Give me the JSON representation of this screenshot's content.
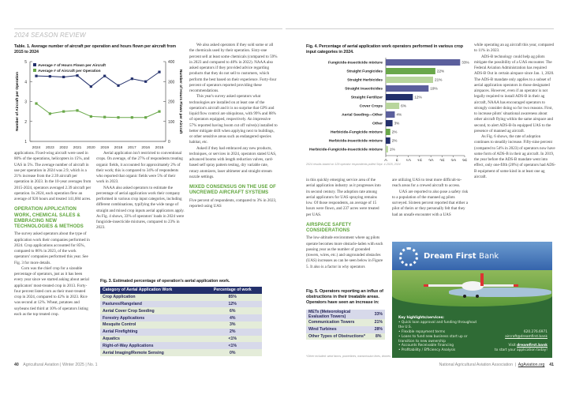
{
  "left_page": {
    "kicker": "2024 SEASON REVIEW",
    "fig1_title": "Table. 1. Average number of aircraft per operation and hours flown per aircraft from 2015 to 2024",
    "col1": [
      "applications. Fixed-wing aircraft were used in 80% of the operations, helicopters in 15%, and UAS in 5%. The average number of aircraft in use per operation in 2024 was 2.9, which is a 21% increase from the 2.39 aircraft per operation in 2023. In the 10-year averages from 2015-2024, operators averaged 2.39 aircraft per operation. In 2024, each operation flew an average of 920 hours and treated 141,084 acres."
    ],
    "heading1": "OPERATION APPLICATION WORK, CHEMICAL SALES & EMBRACING NEW TECHNOLOGIES & METHODS",
    "col1b": [
      "The survey asked operators about the type of application work their companies performed in 2024. Crop applications accounted for 85%, compared to 86% in 2023, of the work operators' companies performed this year. See Fig. 3 for more details.",
      "Corn was the chief crop for a sizeable percentage of operators, just as it has been every year since we started asking about aerial applicators' most-treated crop in 2013. Forty-four percent listed corn as their most-treated crop in 2024, compared to 42% in 2023. Rice was second at 12%. Wheat, potatoes and soybeans tied third at 10% of operators listing each as the top treated crop."
    ],
    "col2": [
      "Aerial application isn't restricted to conventional crops. On average, of the 27% of respondents treating organic fields, it accounted for approximately 2% of their work; this is compared to 34% of respondents who reported that organic fields were 5% of their work in 2023.",
      "NAAA also asked operators to estimate the percentage of aerial application work their company performed in various crop input categories, including different combinations, typifying the wide range of straight and mixed crop inputs aerial applicators apply. As Fig. 4 shows, 33% of operators' loads in 2024 were fungicide-insecticide mixtures, compared to 23% in 2023."
    ],
    "col3": [
      "We also asked operators if they sold some or all the chemicals used by their operation. Sixty-one percent sell at least some chemicals (compared to 59% in 2023 and compared to 48% in 2022). NAAA also asked operators if they provided advice regarding products that they do not sell to customers, which perform the best based on their experience. Forty-four percent of operators reported providing these recommendations.",
      "This year's survey asked operators what technologies are installed on at least one of the operation's aircraft and it is no surprise that GPS and liquid flow control are ubiquitous, with 99% and 88% of operators equipped, respectively. An impressive 57% reported having boom cut off valve(s) installed to better mitigate drift when applying next to buildings, or other sensitive areas such as endangered species habitat, etc.",
      "Asked if they had embraced any new products, techniques, or services in 2024, operators stated UAS, advanced booms with length reduction valves, card-based self spray pattern testing, dry variable rate, rotary atomizers, laser altimeter and straight stream nozzle settings."
    ],
    "heading2": "MIXED CONSENSUS ON THE USE OF UNCREWED AIRCRAFT SYSTEMS",
    "col3b": [
      "Five percent of respondents, compared to 3% in 2023, reported using UAS"
    ],
    "fig3": {
      "title": "Fig. 3. Estimated percentage of operation's aerial application work.",
      "headers": [
        "Category of Aerial Application Work",
        "Percentage of work"
      ],
      "rows": [
        [
          "Crop Application",
          "85%"
        ],
        [
          "Pastures/Rangeland",
          "12%"
        ],
        [
          "Aerial Cover Crop Seeding",
          "6%"
        ],
        [
          "Forestry Applications",
          "4%"
        ],
        [
          "Mesquite Control",
          "3%"
        ],
        [
          "Aerial Firefighting",
          "2%"
        ],
        [
          "Aquatics",
          "<1%"
        ],
        [
          "Right-of-Way Applications",
          "<1%"
        ],
        [
          "Aerial Imaging/Remote Sensing",
          "0%"
        ]
      ]
    },
    "footer": {
      "page": "40",
      "text": "Agricultural Aviation  |  Winter 2025  |  No. 1"
    }
  },
  "right_page": {
    "fig4_title": "Fig. 4. Percentage of aerial application work operators performed in various crop input categories in 2024.",
    "fig4_note": "2024 results based on 129 operator respondents polled Sept. 4-2025, 2024",
    "colA": [
      "in this quickly emerging service area of the aerial application industry as it progresses into its second century. The adoption rate among aerial applicators for UAS spraying remains low. Of those respondents, an average of 15 hours were flown, and 237 acres were treated per UAS."
    ],
    "heading3": "AIRSPACE SAFETY CONSIDERATIONS",
    "colA2": [
      "The low-altitude environment where ag pilots operate becomes more obstacle-laden with each passing year as the number of grounded (towers, wires, etc.) and ungrounded obstacles (UAS) increases as can be seen below in Figure 5. It also is a factor in why operators"
    ],
    "colB": [
      "are utilizing UAS to treat more difficult-to-reach areas for a crewed aircraft to access.",
      "UAS are reported to also pose a safety risk to a population of the manned ag pilots surveyed. Sixteen percent reported that either a pilot of theirs or they personally felt that they had an unsafe encounter with a UAS"
    ],
    "colC": [
      "while operating an ag aircraft this year, compared to 11% in 2023.",
      "ADS-B technology could help ag pilots mitigate the possibility of a UAS encounter. The Federal Aviation Administration has required ADS-B Out in certain airspace since Jan. 1, 2020. The ADS-B mandate only applies to a subset of aerial application operators in those designated airspaces. However, even if an operator is not legally required to install ADS-B in their ag aircraft, NAAA has encouraged operators to strongly consider doing so for two reasons. First, to increase pilots' situational awareness about other aircraft flying within the same airspace and second, to alert ADS-B-In equipped UAS to the presence of manned ag aircraft.",
      "As Fig. 6 shows, the rate of adoption continues to steadily increase. Fifty-nine percent (compared to 54% in 2023) of operators now have some form of ADS-B in their ag aircraft. In 2019, the year before the ADS-B mandate went into effect, only one-fifth (20%) of operators had ADS-B equipment of some kind in at least one ag aircraft."
    ],
    "fig5": {
      "title": "Fig. 5. Operators reporting an influx of obstructions in their treatable areas. Operators have seen an increase in:",
      "rows": [
        [
          "METs (Meteorological Evaluation Towers)",
          "33%"
        ],
        [
          "Communication Towers",
          "21%"
        ],
        [
          "Wind Turbines",
          "28%"
        ],
        [
          "Other Types of Obstructions*",
          "8%"
        ]
      ],
      "note": "*Other included: wind farms, powerlines, transmission lines, drones"
    },
    "ad": {
      "brand_bold": "Dream First",
      "brand_light": "Bank",
      "highlights_title": "Key highlights/services:",
      "highlights": [
        "• Quick loan approval and funding throughout the U.S.",
        "• Flexible repayment terms",
        "• Loans to fund new business start up or transition to new ownership",
        "• Accounts Receivable Financing",
        "• Profitability / Efficiency Analysis"
      ],
      "phone": "620.276.6971",
      "email": "aircraft@dreamfirst.bank",
      "visit_prefix": "Visit",
      "visit_link": "dreamfirst.bank",
      "visit_suffix": "to start your application today!"
    },
    "footer": {
      "org": "National Agricultural Aviation Association",
      "site": "AgAviation.org",
      "page": "41"
    }
  },
  "colors": {
    "navy": "#23306b",
    "purple": "#5b5f9c",
    "green": "#6aa84a",
    "lightgreen": "#b8d59c",
    "heading_green": "#5ea43a"
  },
  "chart_data": [
    {
      "type": "line",
      "title": "Table. 1. Average number of aircraft per operation and hours flown per aircraft from 2015 to 2024",
      "categories": [
        "2024",
        "2023",
        "2022",
        "2021",
        "2020",
        "2019",
        "2018",
        "2017",
        "2016",
        "2015"
      ],
      "ylabel": "Number of Aircraft per Operation",
      "ylim": [
        1,
        5
      ],
      "yticks": [
        "1",
        "2",
        "3",
        "4",
        "5"
      ],
      "y2label": "Number of Hours Flown per Aircraft",
      "y2lim": [
        0,
        400
      ],
      "y2ticks": [
        "0",
        "100",
        "200",
        "300",
        "400"
      ],
      "legend": "top-left",
      "series": [
        {
          "name": "Average # of Hours Flown per Aircraft",
          "axis": "right",
          "color": "#23306b",
          "values": [
            328,
            326,
            323,
            330,
            275,
            328,
            280,
            314,
            300,
            348
          ]
        },
        {
          "name": "Average # of Aircraft per Operation",
          "axis": "left",
          "color": "#6aa84a",
          "values": [
            2.9,
            2.39,
            2.5,
            2.55,
            2.25,
            2.22,
            2.2,
            2.2,
            2.2,
            2.5
          ]
        }
      ]
    },
    {
      "type": "bar",
      "orientation": "horizontal",
      "title": "Fig. 4. Percentage of aerial application work operators performed in various crop input categories in 2024.",
      "categories": [
        "Fungicide-Insecticide mixture",
        "Straight Fungicides",
        "Straight Herbicides",
        "Straight Insecticides",
        "Straight Fertilizer",
        "Cover Crops",
        "Aerial Seeding—Other",
        "Other",
        "Herbicide-Fungicide mixture",
        "Herbicide-Insecticide mixture",
        "Herbicide-Fungicide-Insecticide mixture"
      ],
      "values": [
        33,
        22,
        21,
        19,
        12,
        6,
        4,
        3,
        2,
        2,
        1
      ],
      "labels": [
        "33%",
        "22%",
        "21%",
        "19%",
        "12%",
        "6%",
        "4%",
        "3%",
        "2%",
        "2%",
        "1%"
      ],
      "colors": [
        "#5b5f9c",
        "#6aa84a",
        "#b8d59c",
        "#5b5f9c",
        "#23306b",
        "#b8d59c",
        "#5b5f9c",
        "#23306b",
        "#6aa84a",
        "#23306b",
        "#b8d59c"
      ],
      "xlim": [
        0,
        35
      ],
      "xticks": [
        "0",
        "5",
        "10",
        "15",
        "20",
        "25",
        "30",
        "35"
      ]
    }
  ]
}
